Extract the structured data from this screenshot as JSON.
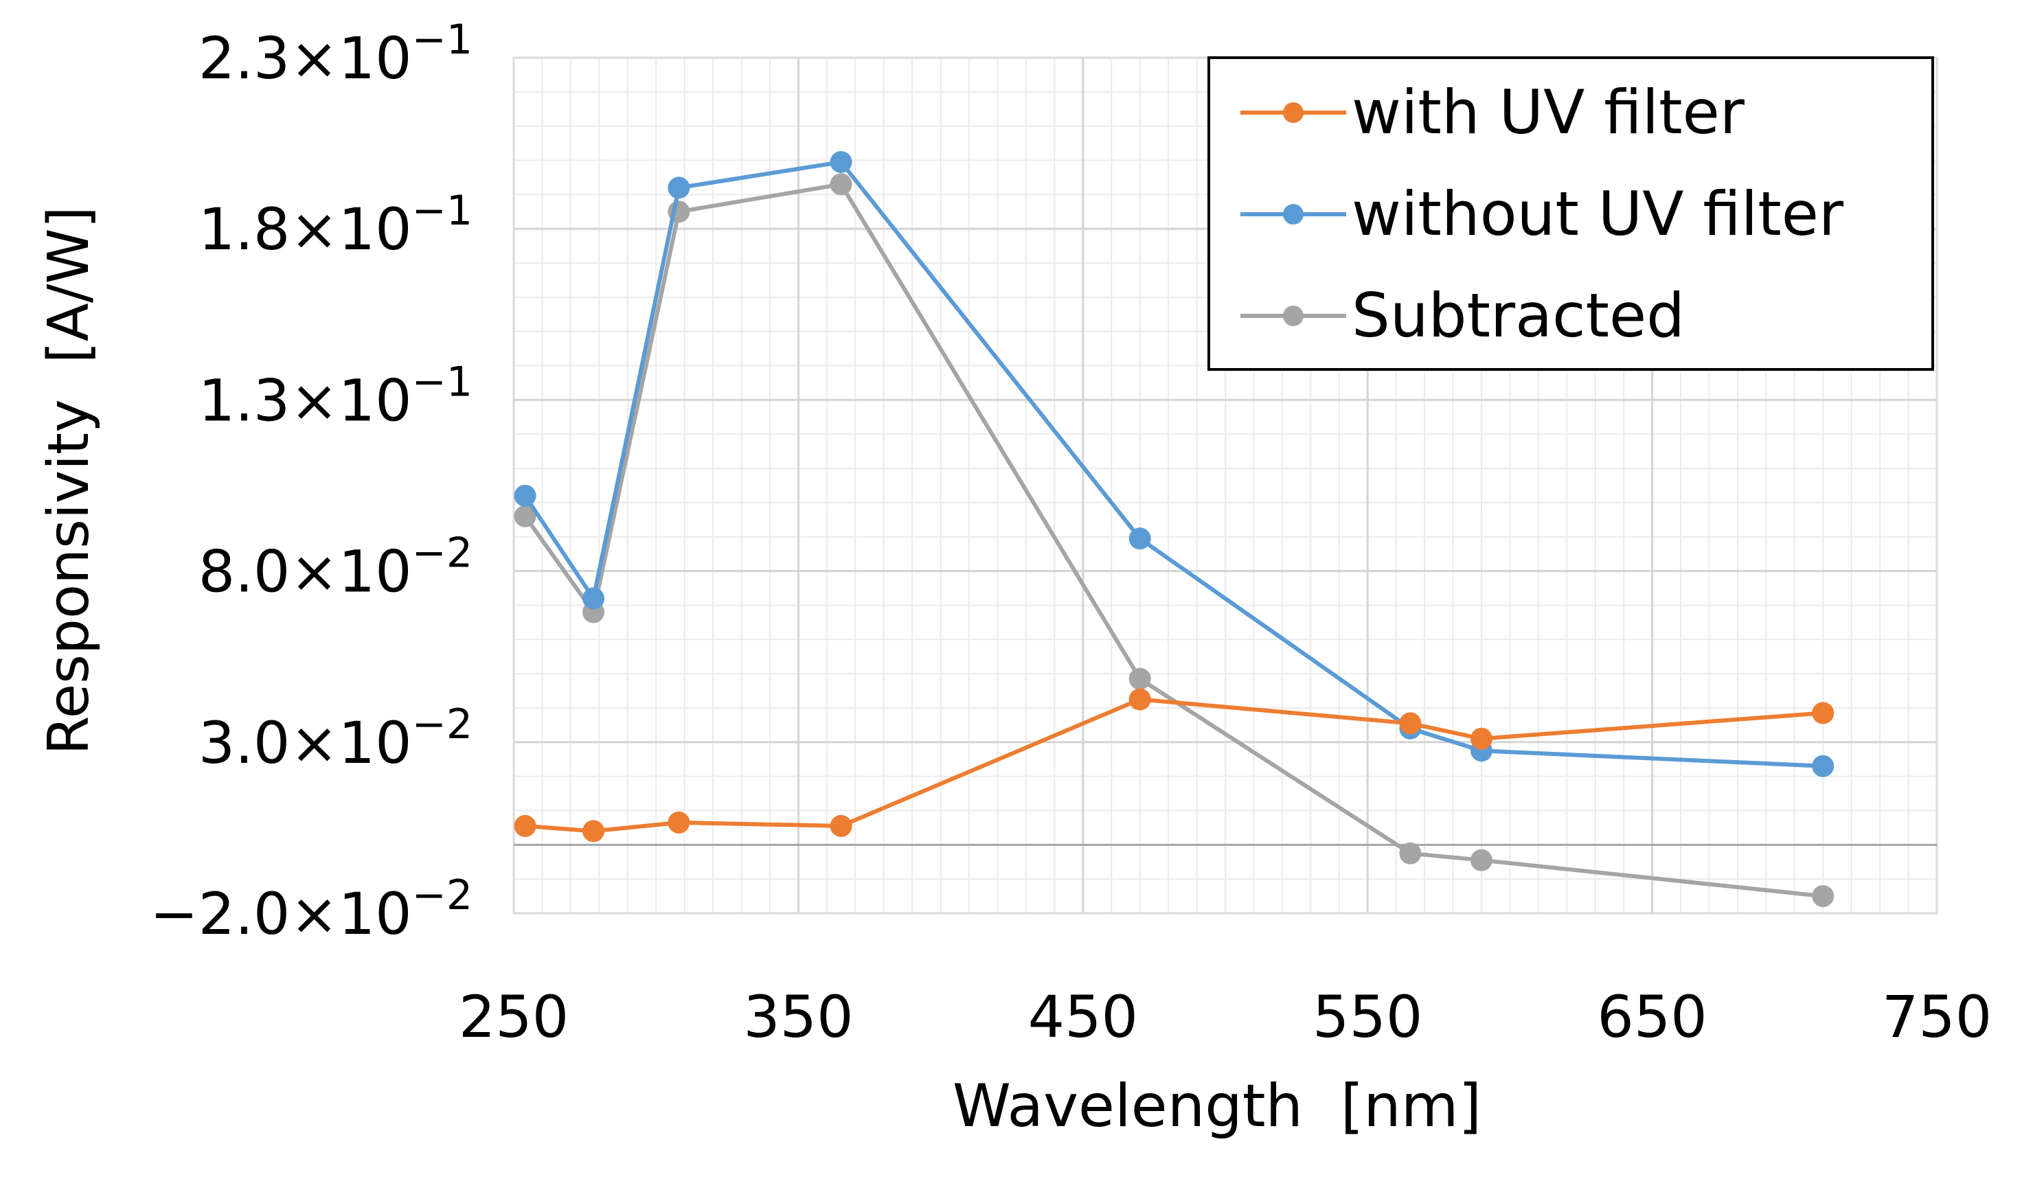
{
  "chart_data": {
    "type": "line",
    "title": "",
    "xlabel": "Wavelength  [nm]",
    "ylabel": "Responsivity  [A/W]",
    "xlim": [
      250,
      750
    ],
    "ylim": [
      -0.02,
      0.23
    ],
    "x_ticks": [
      250,
      350,
      450,
      550,
      650,
      750
    ],
    "x_tick_labels": [
      "250",
      "350",
      "450",
      "550",
      "650",
      "750"
    ],
    "y_ticks": [
      {
        "value": 0.23,
        "mantissa": "2.3",
        "exponent": "−1"
      },
      {
        "value": 0.18,
        "mantissa": "1.8",
        "exponent": "−1"
      },
      {
        "value": 0.13,
        "mantissa": "1.3",
        "exponent": "−1"
      },
      {
        "value": 0.08,
        "mantissa": "8.0",
        "exponent": "−2"
      },
      {
        "value": 0.03,
        "mantissa": "3.0",
        "exponent": "−2"
      },
      {
        "value": -0.02,
        "mantissa": "−2.0",
        "exponent": "−2"
      }
    ],
    "tick_multiplier": "×10",
    "grid": true,
    "zero_line": true,
    "legend_position": "top-right",
    "series": [
      {
        "name": "with UV filter",
        "color": "#ED7D31",
        "x": [
          254,
          278,
          308,
          365,
          470,
          565,
          590,
          710
        ],
        "y": [
          0.0055,
          0.004,
          0.0065,
          0.0055,
          0.0425,
          0.0355,
          0.031,
          0.0385
        ]
      },
      {
        "name": "without UV filter",
        "color": "#5B9BD5",
        "x": [
          254,
          278,
          308,
          365,
          470,
          565,
          590,
          710
        ],
        "y": [
          0.102,
          0.072,
          0.192,
          0.1995,
          0.0895,
          0.034,
          0.0275,
          0.023
        ]
      },
      {
        "name": "Subtracted",
        "color": "#A5A5A5",
        "x": [
          254,
          278,
          308,
          365,
          470,
          565,
          590,
          710
        ],
        "y": [
          0.096,
          0.068,
          0.185,
          0.193,
          0.0485,
          -0.0025,
          -0.0045,
          -0.015
        ]
      }
    ]
  }
}
